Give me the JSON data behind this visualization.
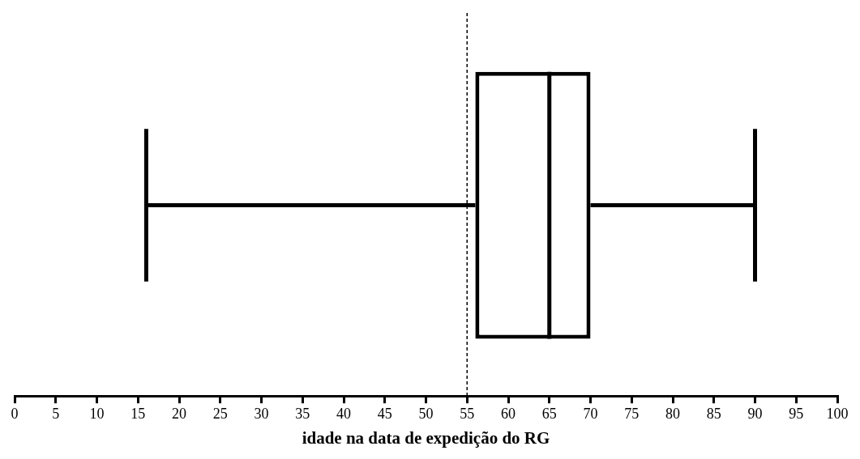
{
  "chart_data": {
    "type": "box",
    "orientation": "horizontal",
    "categories": [
      null
    ],
    "boxes": [
      {
        "low": 16,
        "q1": 56,
        "median": 65,
        "q3": 70,
        "high": 90
      }
    ],
    "color": "#000000",
    "xlabel": "idade na data de expedição do RG",
    "xlim": [
      0,
      100
    ],
    "xticks": [
      0,
      5,
      10,
      15,
      20,
      25,
      30,
      35,
      40,
      45,
      50,
      55,
      60,
      65,
      70,
      75,
      80,
      85,
      90,
      95,
      100
    ],
    "ref_lines": [
      {
        "axis": "x",
        "value": 55,
        "color": "#000000",
        "line_style": "dashed"
      }
    ]
  }
}
